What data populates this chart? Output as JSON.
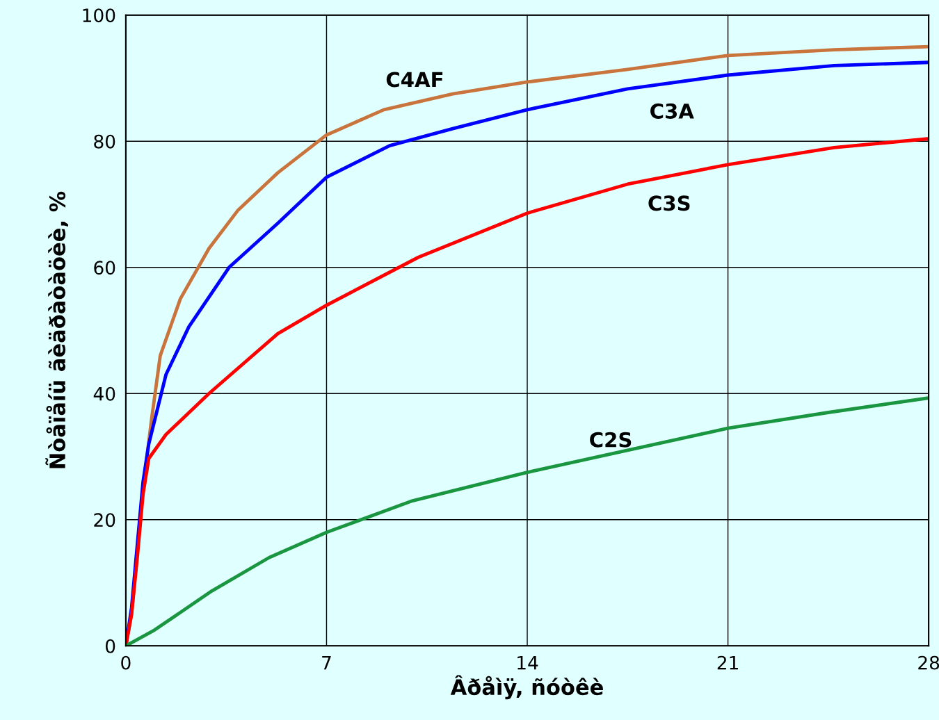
{
  "chart_data": {
    "type": "line",
    "xlabel": "Âðåìÿ, ñóòêè",
    "ylabel": "Ñòåïåíü ãèäðàòàöèè, %",
    "xlim": [
      0,
      28
    ],
    "ylim": [
      0,
      100
    ],
    "xticks": [
      0,
      7,
      14,
      21,
      28
    ],
    "yticks": [
      0,
      20,
      40,
      60,
      80,
      100
    ],
    "grid": true,
    "marker": "none",
    "line_style": "solid",
    "series": [
      {
        "name": "C4AF",
        "color": "#c8743c",
        "x": [
          0,
          0.2,
          0.4,
          0.6,
          0.9,
          1.2,
          1.9,
          2.9,
          3.9,
          5.3,
          7,
          9,
          11.4,
          14,
          17.5,
          21,
          24.7,
          28
        ],
        "values": [
          0,
          5,
          15,
          25,
          36,
          46,
          55,
          63,
          69,
          75,
          81,
          85,
          87.5,
          89.4,
          91.4,
          93.6,
          94.5,
          95
        ]
      },
      {
        "name": "C3A",
        "color": "#0000ff",
        "x": [
          0,
          0.2,
          0.4,
          0.6,
          0.8,
          1.4,
          2.2,
          3.6,
          5.3,
          7,
          9.2,
          11.4,
          14,
          17.5,
          21,
          24.7,
          28
        ],
        "values": [
          0,
          6,
          16,
          26,
          32,
          43,
          50.6,
          60,
          67,
          74.3,
          79.3,
          82,
          85,
          88.3,
          90.5,
          92,
          92.5
        ]
      },
      {
        "name": "C3S",
        "color": "#ff0000",
        "x": [
          0,
          0.2,
          0.4,
          0.6,
          0.8,
          1.4,
          2.9,
          5.3,
          7,
          10.2,
          14,
          17.5,
          21,
          24.7,
          28
        ],
        "values": [
          0,
          5,
          14,
          24,
          29.7,
          33.5,
          40,
          49.5,
          54,
          61.6,
          68.6,
          73.2,
          76.3,
          79,
          80.4
        ]
      },
      {
        "name": "C2S",
        "color": "#1a9641",
        "x": [
          0,
          1,
          3,
          5,
          7,
          10,
          14,
          17.5,
          21,
          24.5,
          28
        ],
        "values": [
          0,
          2.5,
          8.7,
          14,
          18,
          23,
          27.5,
          31,
          34.5,
          37,
          39.3
        ]
      }
    ]
  }
}
